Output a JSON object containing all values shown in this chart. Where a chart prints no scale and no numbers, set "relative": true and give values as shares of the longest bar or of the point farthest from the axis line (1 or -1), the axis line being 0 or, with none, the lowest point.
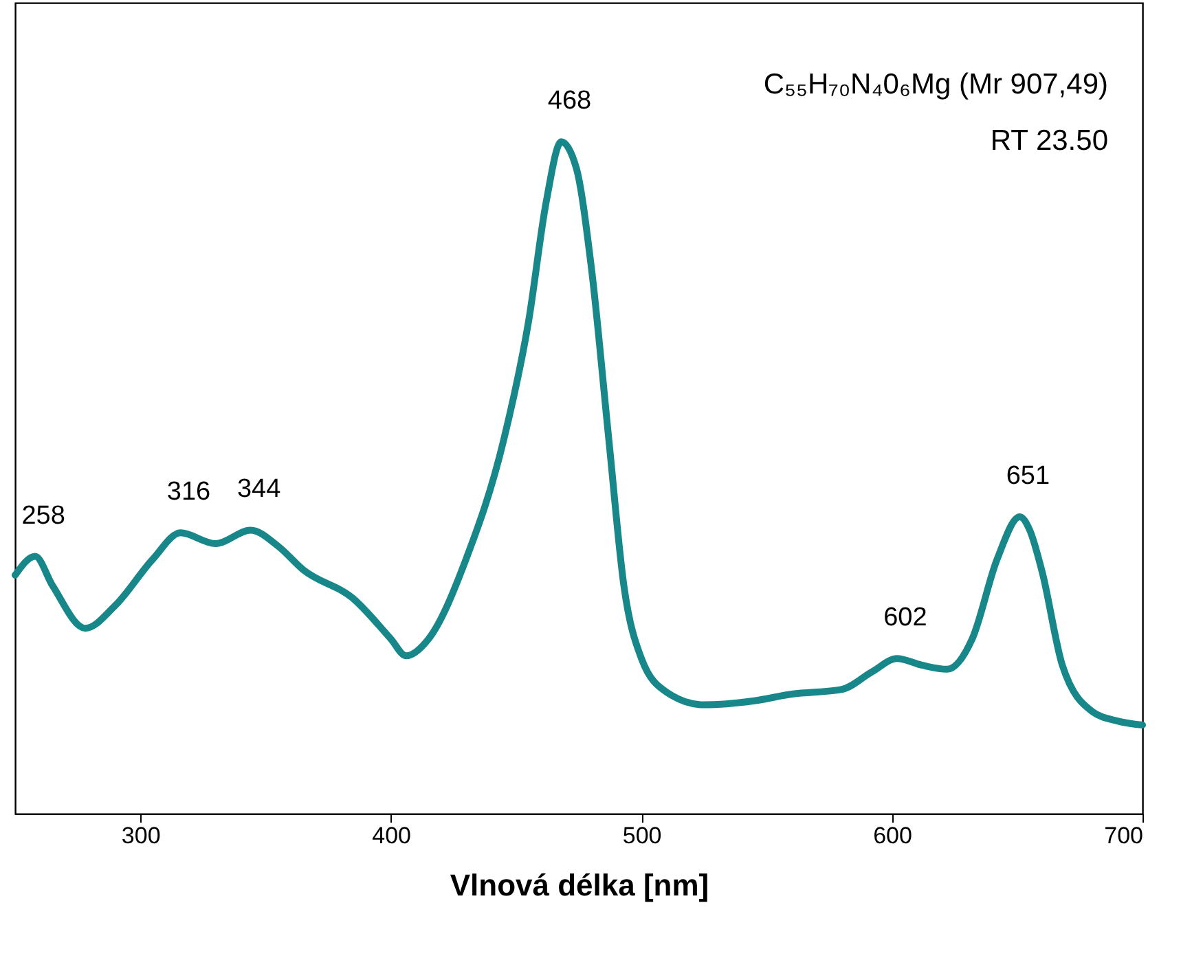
{
  "chart_data": {
    "type": "line",
    "relative": true,
    "xlabel": "Vlnová délka [nm]",
    "xlim": [
      250,
      700
    ],
    "xticks": [
      300,
      400,
      500,
      600,
      700
    ],
    "grid": false,
    "marker": "none",
    "line_style": "solid",
    "x": [
      250,
      258,
      265,
      278,
      290,
      305,
      316,
      330,
      344,
      355,
      365,
      385,
      400,
      406,
      415,
      430,
      445,
      455,
      462,
      468,
      474,
      480,
      487,
      493,
      500,
      510,
      525,
      545,
      560,
      580,
      592,
      602,
      612,
      622,
      632,
      642,
      651,
      655,
      660,
      668,
      680,
      690,
      700
    ],
    "series": [
      {
        "color": "#17878a",
        "values": [
          0.355,
          0.383,
          0.339,
          0.276,
          0.31,
          0.379,
          0.418,
          0.402,
          0.422,
          0.398,
          0.363,
          0.32,
          0.26,
          0.235,
          0.26,
          0.379,
          0.556,
          0.734,
          0.911,
          1.0,
          0.961,
          0.813,
          0.556,
          0.339,
          0.231,
          0.181,
          0.162,
          0.168,
          0.178,
          0.185,
          0.211,
          0.231,
          0.221,
          0.215,
          0.26,
          0.379,
          0.442,
          0.422,
          0.359,
          0.221,
          0.152,
          0.138,
          0.132
        ]
      }
    ],
    "annotations": [
      "C₅₅H₇₀N₄0₆Mg (Mr 907,49)",
      "RT 23.50",
      {
        "text": "258",
        "x": 258,
        "y": 0.383
      },
      {
        "text": "316",
        "x": 316,
        "y": 0.418
      },
      {
        "text": "344",
        "x": 344,
        "y": 0.422
      },
      {
        "text": "468",
        "x": 468,
        "y": 1.0
      },
      {
        "text": "602",
        "x": 602,
        "y": 0.231
      },
      {
        "text": "651",
        "x": 651,
        "y": 0.442
      }
    ]
  }
}
